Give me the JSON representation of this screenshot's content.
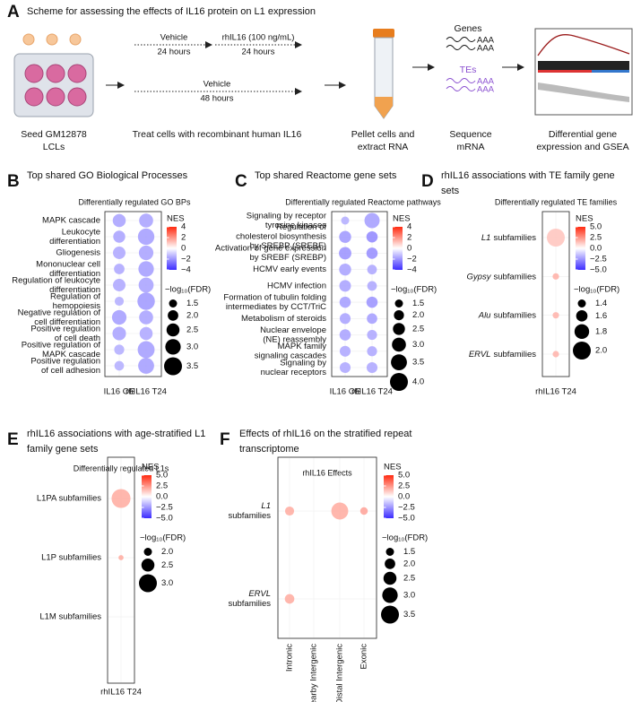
{
  "scheme": {
    "panel": "A",
    "title": "Scheme for assessing the effects of IL16 protein on L1 expression",
    "steps": [
      [
        "Seed GM12878",
        "LCLs"
      ],
      [
        "Treat cells with recombinant human IL16"
      ],
      [
        "Pellet cells and",
        "extract RNA"
      ],
      [
        "Sequence",
        "mRNA"
      ],
      [
        "Differential gene",
        "expression and GSEA"
      ]
    ],
    "treatment_top": {
      "first": "Vehicle",
      "first_time": "24 hours",
      "second": "rhIL16 (100 ng/mL)",
      "second_time": "24 hours"
    },
    "treatment_bottom": {
      "name": "Vehicle",
      "time": "48 hours"
    },
    "genes": "Genes",
    "tes": "TEs",
    "poly_a": "AAA"
  },
  "chart_data": [
    {
      "type": "dotplot",
      "panel": "B",
      "title": [
        "Top shared GO Biological Processes"
      ],
      "subtitle": "Differentially regulated GO BPs",
      "rows": [
        [
          "MAPK cascade"
        ],
        [
          "Leukocyte",
          "differentiation"
        ],
        [
          "Gliogenesis"
        ],
        [
          "Mononuclear cell",
          "differentiation"
        ],
        [
          "Regulation of leukocyte",
          "differentiation"
        ],
        [
          "Regulation of",
          "hemopoiesis"
        ],
        [
          "Negative regulation of",
          "cell differentiation"
        ],
        [
          "Positive regulation",
          "of cell death"
        ],
        [
          "Positive regulation of",
          "MAPK cascade"
        ],
        [
          "Positive regulation",
          "of cell adhesion"
        ]
      ],
      "series": [
        {
          "name": "IL16 OE",
          "nes": [
            -1.8,
            -1.8,
            -1.7,
            -1.7,
            -1.7,
            -1.6,
            -1.9,
            -1.8,
            -1.6,
            -1.6
          ],
          "log10_fdr": [
            2.5,
            2.3,
            2.4,
            2.0,
            2.4,
            1.7,
            2.8,
            2.6,
            1.9,
            1.8
          ]
        },
        {
          "name": "rhIL16 T24",
          "nes": [
            -1.8,
            -1.9,
            -1.8,
            -1.9,
            -1.8,
            -2.0,
            -1.8,
            -1.7,
            -1.9,
            -1.9
          ],
          "log10_fdr": [
            2.7,
            3.2,
            2.8,
            3.0,
            2.9,
            3.4,
            2.7,
            2.5,
            3.3,
            3.1
          ]
        }
      ],
      "color_scale": {
        "title": "NES",
        "lim": [
          -4,
          4
        ],
        "ticks": [
          4,
          2,
          0,
          {
            "value": -2,
            "label": "−2"
          },
          {
            "value": -4,
            "label": "−4"
          }
        ],
        "colors": [
          "#3c2cff",
          "#ffffff",
          "#ff2a10"
        ]
      },
      "size_scale": {
        "title": "−log₁₀(FDR)",
        "ticks": [
          1.5,
          {
            "value": 2,
            "label": "2.0"
          },
          2.5,
          {
            "value": 3,
            "label": "3.0"
          },
          3.5
        ]
      }
    },
    {
      "type": "dotplot",
      "panel": "C",
      "title": [
        "Top shared Reactome gene sets"
      ],
      "subtitle": "Differentially regulated Reactome pathways",
      "rows": [
        [
          "Signaling by receptor",
          "tyrosine kinases"
        ],
        [
          "Regulation of",
          "cholesterol biosynthesis",
          "by SREBP (SREBF)"
        ],
        [
          "Activation of gene expression",
          "by SREBF (SREBP)"
        ],
        [
          "HCMV early events"
        ],
        [
          "HCMV infection"
        ],
        [
          "Formation of tubulin folding",
          "intermediates by CCT/TriC"
        ],
        [
          "Metabolism of steroids"
        ],
        [
          "Nuclear envelope",
          "(NE) reassembly"
        ],
        [
          "MAPK family",
          "signaling cascades"
        ],
        [
          "Signaling by",
          "nuclear receptors"
        ]
      ],
      "series": [
        {
          "name": "IL16 OE",
          "nes": [
            -1.6,
            -2.0,
            -2.1,
            -1.8,
            -1.8,
            -1.9,
            -1.8,
            -1.8,
            -1.7,
            -1.7
          ],
          "log10_fdr": [
            1.5,
            2.5,
            2.6,
            2.5,
            2.4,
            2.3,
            2.2,
            2.3,
            2.2,
            2.2
          ]
        },
        {
          "name": "rhIL16 T24",
          "nes": [
            -1.9,
            -2.3,
            -2.2,
            -1.7,
            -1.7,
            -2.1,
            -1.9,
            -1.7,
            -1.7,
            -1.7
          ],
          "log10_fdr": [
            3.3,
            2.3,
            2.3,
            1.9,
            1.9,
            2.3,
            2.1,
            2.0,
            2.0,
            2.2
          ]
        }
      ],
      "color_scale": {
        "title": "NES",
        "lim": [
          -4,
          4
        ],
        "ticks": [
          4,
          2,
          0,
          {
            "value": -2,
            "label": "−2"
          },
          {
            "value": -4,
            "label": "−4"
          }
        ],
        "colors": [
          "#3c2cff",
          "#ffffff",
          "#ff2a10"
        ]
      },
      "size_scale": {
        "title": "−log₁₀(FDR)",
        "ticks": [
          1.5,
          {
            "value": 2,
            "label": "2.0"
          },
          2.5,
          {
            "value": 3,
            "label": "3.0"
          },
          3.5,
          {
            "value": 4,
            "label": "4.0"
          }
        ]
      }
    },
    {
      "type": "dotplot",
      "panel": "D",
      "title": [
        "rhIL16 associations with TE family gene",
        "sets"
      ],
      "subtitle": "Differentially regulated TE families",
      "rows": [
        {
          "family": "L1",
          "suffix": "subfamilies"
        },
        {
          "family": "Gypsy",
          "suffix": "subfamilies"
        },
        {
          "family": "Alu",
          "suffix": "subfamilies"
        },
        {
          "family": "ERVL",
          "suffix": "subfamilies"
        }
      ],
      "series": [
        {
          "name": "rhIL16 T24",
          "nes": [
            1.4,
            1.9,
            1.8,
            1.8
          ],
          "log10_fdr": [
            2.0,
            1.3,
            1.3,
            1.3
          ]
        }
      ],
      "color_scale": {
        "title": "NES",
        "lim": [
          -5,
          5
        ],
        "ticks": [
          {
            "value": 5,
            "label": "5.0"
          },
          2.5,
          {
            "value": 0,
            "label": "0.0"
          },
          {
            "value": -2.5,
            "label": "−2.5"
          },
          {
            "value": -5,
            "label": "−5.0"
          }
        ],
        "colors": [
          "#3c2cff",
          "#ffffff",
          "#ff2a10"
        ]
      },
      "size_scale": {
        "title": "−log₁₀(FDR)",
        "ticks": [
          1.4,
          1.6,
          1.8,
          {
            "value": 2,
            "label": "2.0"
          }
        ]
      }
    },
    {
      "type": "dotplot",
      "panel": "E",
      "title": [
        "rhIL16 associations with age-stratified L1",
        "family gene sets"
      ],
      "subtitle": "Differentially regulated L1s",
      "rows": [
        [
          "L1PA subfamilies"
        ],
        [
          "L1P subfamilies"
        ],
        [
          "L1M subfamilies"
        ]
      ],
      "series": [
        {
          "name": "rhIL16 T24",
          "nes": [
            2.0,
            2.0,
            null
          ],
          "log10_fdr": [
            3.1,
            1.7,
            null
          ]
        }
      ],
      "color_scale": {
        "title": "NES",
        "lim": [
          -5,
          5
        ],
        "ticks": [
          {
            "value": 5,
            "label": "5.0"
          },
          2.5,
          {
            "value": 0,
            "label": "0.0"
          },
          {
            "value": -2.5,
            "label": "−2.5"
          },
          {
            "value": -5,
            "label": "−5.0"
          }
        ],
        "colors": [
          "#3c2cff",
          "#ffffff",
          "#ff2a10"
        ]
      },
      "size_scale": {
        "title": "−log₁₀(FDR)",
        "ticks": [
          {
            "value": 2,
            "label": "2.0"
          },
          2.5,
          {
            "value": 3,
            "label": "3.0"
          }
        ]
      }
    },
    {
      "type": "dotplot",
      "panel": "F",
      "title": [
        "Effects of rhIL16 on the stratified repeat",
        "transcriptome"
      ],
      "subtitle": "rhIL16 Effects",
      "row_label_stack": true,
      "column_label_rotate": true,
      "rows": [
        {
          "family": "L1",
          "suffix": "subfamilies"
        },
        {
          "family": "ERVL",
          "suffix": "subfamilies"
        }
      ],
      "series": [
        {
          "name": "Intronic",
          "nes": [
            2.0,
            2.0
          ],
          "log10_fdr": [
            1.7,
            1.8
          ]
        },
        {
          "name": "Nearby Intergenic",
          "nes": [
            null,
            null
          ],
          "log10_fdr": [
            null,
            null
          ]
        },
        {
          "name": "Distal Intergenic",
          "nes": [
            2.0,
            null
          ],
          "log10_fdr": [
            3.3,
            null
          ]
        },
        {
          "name": "Exonic",
          "nes": [
            2.2,
            null
          ],
          "log10_fdr": [
            1.4,
            null
          ]
        }
      ],
      "color_scale": {
        "title": "NES",
        "lim": [
          -5,
          5
        ],
        "ticks": [
          {
            "value": 5,
            "label": "5.0"
          },
          2.5,
          {
            "value": 0,
            "label": "0.0"
          },
          {
            "value": -2.5,
            "label": "−2.5"
          },
          {
            "value": -5,
            "label": "−5.0"
          }
        ],
        "colors": [
          "#3c2cff",
          "#ffffff",
          "#ff2a10"
        ]
      },
      "size_scale": {
        "title": "−log₁₀(FDR)",
        "ticks": [
          1.5,
          {
            "value": 2,
            "label": "2.0"
          },
          2.5,
          {
            "value": 3,
            "label": "3.0"
          },
          3.5
        ]
      }
    }
  ]
}
